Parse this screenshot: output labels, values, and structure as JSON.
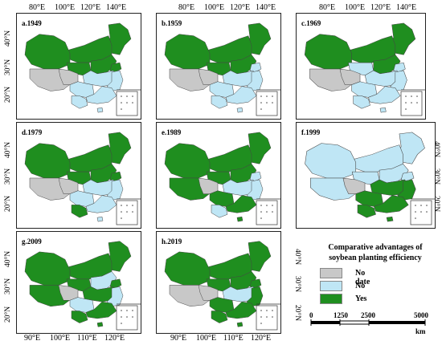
{
  "panels": [
    {
      "label": "a.1949",
      "key": "p1949"
    },
    {
      "label": "b.1959",
      "key": "p1959"
    },
    {
      "label": "c.1969",
      "key": "p1969"
    },
    {
      "label": "d.1979",
      "key": "p1979"
    },
    {
      "label": "e.1989",
      "key": "p1989"
    },
    {
      "label": "f.1999",
      "key": "p1999"
    },
    {
      "label": "g.2009",
      "key": "p2009"
    },
    {
      "label": "h.2019",
      "key": "p2019"
    }
  ],
  "top_lon_ticks": [
    "80°E",
    "100°E",
    "120°E",
    "140°E"
  ],
  "bottom_lon_ticks": [
    "90°E",
    "100°E",
    "110°E",
    "120°E"
  ],
  "lat_ticks_row1": [
    "40°N",
    "30°N",
    "20°N"
  ],
  "lat_ticks_row2": [
    "40°N",
    "30°N",
    "20°N"
  ],
  "lat_ticks_row3": [
    "40°N",
    "30°N",
    "20°N"
  ],
  "legend": {
    "title_line1": "Comparative advantages of",
    "title_line2": "soybean planting efficiency",
    "items": [
      {
        "label": "No date",
        "color": "#c8c8c8"
      },
      {
        "label": "No",
        "color": "#bfe6f5"
      },
      {
        "label": "Yes",
        "color": "#1f8e1f"
      }
    ]
  },
  "scalebar": {
    "ticks": [
      "0",
      "1250",
      "2500",
      "5000"
    ],
    "unit": "km"
  },
  "colors": {
    "nodata": "#c8c8c8",
    "no": "#bfe6f5",
    "yes": "#1f8e1f",
    "border": "#444444"
  }
}
